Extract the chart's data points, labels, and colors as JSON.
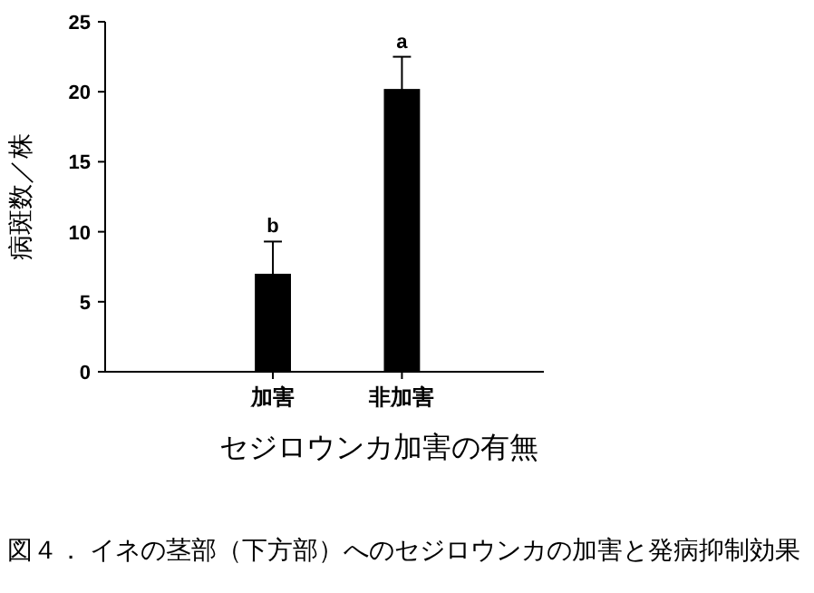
{
  "chart_data": {
    "type": "bar",
    "categories": [
      "加害",
      "非加害"
    ],
    "values": [
      7.0,
      20.2
    ],
    "errors": [
      2.3,
      2.3
    ],
    "color": "#000000",
    "ylim": [
      0,
      25
    ],
    "yticks": [
      0,
      5,
      10,
      15,
      20,
      25
    ],
    "ylabel": "病斑数／株",
    "xlabel": "セジロウンカ加害の有無",
    "annotations": [
      {
        "text": "b",
        "x": "加害",
        "y": 9.3
      },
      {
        "text": "a",
        "x": "非加害",
        "y": 22.5
      },
      "図４． イネの茎部（下方部）へのセジロウンカの加害と発病抑制効果"
    ]
  }
}
